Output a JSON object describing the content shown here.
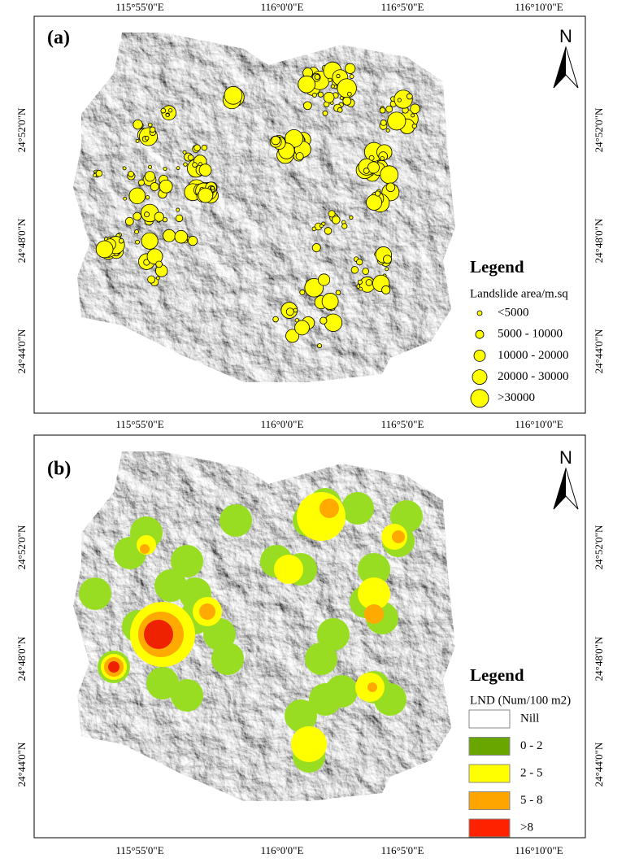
{
  "map": {
    "x_labels": [
      "115°55'0\"E",
      "116°0'0\"E",
      "116°5'0\"E",
      "116°10'0\"E"
    ],
    "y_labels": [
      "24°52'0\"N",
      "24°48'0\"N",
      "24°44'0\"N"
    ]
  },
  "panels": [
    {
      "label": "(a)",
      "north": "N",
      "legend": {
        "title": "Legend",
        "subtitle": "Landslide area/m.sq",
        "items": [
          "<5000",
          "5000 - 10000",
          "10000 - 20000",
          "20000 - 30000",
          ">30000"
        ]
      }
    },
    {
      "label": "(b)",
      "north": "N",
      "legend": {
        "title": "Legend",
        "subtitle": "LND (Num/100 m2)",
        "items": [
          "Nill",
          "0 - 2",
          "2 - 5",
          "5 - 8",
          ">8"
        ]
      }
    }
  ]
}
